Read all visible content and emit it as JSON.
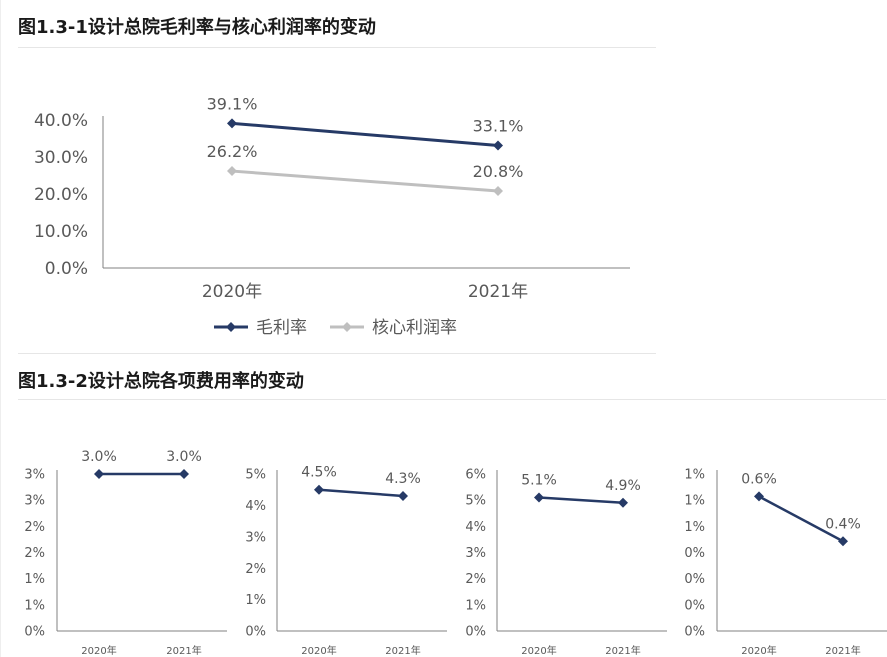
{
  "section1": {
    "title": "图1.3-1设计总院毛利率与核心利润率的变动"
  },
  "section2": {
    "title": "图1.3-2设计总院各项费用率的变动"
  },
  "colors": {
    "primary": "#263a66",
    "secondary": "#bfbfbf",
    "axis": "#808080"
  },
  "chart_data": [
    {
      "type": "line",
      "title": "",
      "categories": [
        "2020年",
        "2021年"
      ],
      "yticks": [
        "0.0%",
        "10.0%",
        "20.0%",
        "30.0%",
        "40.0%"
      ],
      "ylim": [
        0,
        40
      ],
      "legend": "bottom",
      "series": [
        {
          "name": "毛利率",
          "values": [
            39.1,
            33.1
          ],
          "labels": [
            "39.1%",
            "33.1%"
          ],
          "color": "#263a66"
        },
        {
          "name": "核心利润率",
          "values": [
            26.2,
            20.8
          ],
          "labels": [
            "26.2%",
            "20.8%"
          ],
          "color": "#bfbfbf"
        }
      ]
    },
    {
      "type": "line",
      "categories": [
        "2020年",
        "2021年"
      ],
      "yticks": [
        "0%",
        "1%",
        "1%",
        "2%",
        "2%",
        "3%",
        "3%"
      ],
      "ylim": [
        0,
        3.0
      ],
      "series": [
        {
          "values": [
            3.0,
            3.0
          ],
          "labels": [
            "3.0%",
            "3.0%"
          ],
          "color": "#263a66"
        }
      ]
    },
    {
      "type": "line",
      "categories": [
        "2020年",
        "2021年"
      ],
      "yticks": [
        "0%",
        "1%",
        "2%",
        "3%",
        "4%",
        "5%"
      ],
      "ylim": [
        0,
        5
      ],
      "series": [
        {
          "values": [
            4.5,
            4.3
          ],
          "labels": [
            "4.5%",
            "4.3%"
          ],
          "color": "#263a66"
        }
      ]
    },
    {
      "type": "line",
      "categories": [
        "2020年",
        "2021年"
      ],
      "yticks": [
        "0%",
        "1%",
        "2%",
        "3%",
        "4%",
        "5%",
        "6%"
      ],
      "ylim": [
        0,
        6
      ],
      "series": [
        {
          "values": [
            5.1,
            4.9
          ],
          "labels": [
            "5.1%",
            "4.9%"
          ],
          "color": "#263a66"
        }
      ]
    },
    {
      "type": "line",
      "categories": [
        "2020年",
        "2021年"
      ],
      "yticks": [
        "0%",
        "0%",
        "0%",
        "0%",
        "1%",
        "1%",
        "1%"
      ],
      "ylim": [
        0,
        0.7
      ],
      "series": [
        {
          "values": [
            0.6,
            0.4
          ],
          "labels": [
            "0.6%",
            "0.4%"
          ],
          "color": "#263a66"
        }
      ]
    }
  ]
}
